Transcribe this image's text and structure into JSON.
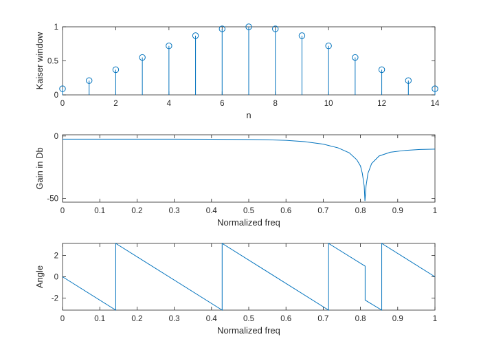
{
  "figure": {
    "background": "#ffffff",
    "series_color": "#0072BD",
    "axis_color": "#262626"
  },
  "chart_data": [
    {
      "type": "stem",
      "xlabel": "n",
      "ylabel": "Kaiser window",
      "xlim": [
        0,
        14
      ],
      "ylim": [
        0,
        1
      ],
      "xticks": [
        "0",
        "2",
        "4",
        "6",
        "8",
        "10",
        "12",
        "14"
      ],
      "yticks": [
        "0",
        "0.5",
        "1"
      ],
      "grid": false,
      "n": [
        0,
        1,
        2,
        3,
        4,
        5,
        6,
        7,
        8,
        9,
        10,
        11,
        12,
        13,
        14
      ],
      "values": [
        0.09,
        0.21,
        0.37,
        0.55,
        0.72,
        0.87,
        0.97,
        1.0,
        0.97,
        0.87,
        0.72,
        0.55,
        0.37,
        0.21,
        0.09
      ]
    },
    {
      "type": "line",
      "xlabel": "Normalized freq",
      "ylabel": "Gain in Db",
      "xlim": [
        0,
        1
      ],
      "ylim": [
        -53,
        1
      ],
      "xticks": [
        "0",
        "0.1",
        "0.2",
        "0.3",
        "0.4",
        "0.5",
        "0.6",
        "0.7",
        "0.8",
        "0.9",
        "1"
      ],
      "yticks": [
        "-50",
        "0"
      ],
      "grid": false,
      "x": [
        0,
        0.1,
        0.2,
        0.3,
        0.4,
        0.5,
        0.55,
        0.6,
        0.65,
        0.7,
        0.74,
        0.77,
        0.79,
        0.8,
        0.805,
        0.81,
        0.812,
        0.815,
        0.82,
        0.83,
        0.85,
        0.88,
        0.92,
        0.96,
        1.0
      ],
      "y": [
        -2.5,
        -2.5,
        -2.5,
        -2.5,
        -2.6,
        -2.8,
        -3.0,
        -3.5,
        -4.5,
        -6.5,
        -9.5,
        -13.5,
        -19,
        -24,
        -30,
        -40,
        -52,
        -40,
        -30,
        -22,
        -16,
        -13,
        -11.5,
        -10.8,
        -10.5
      ]
    },
    {
      "type": "line",
      "xlabel": "Normalized freq",
      "ylabel": "Angle",
      "xlim": [
        0,
        1
      ],
      "ylim": [
        -3.1416,
        3.1416
      ],
      "xticks": [
        "0",
        "0.1",
        "0.2",
        "0.3",
        "0.4",
        "0.5",
        "0.6",
        "0.7",
        "0.8",
        "0.9",
        "1"
      ],
      "yticks": [
        "-2",
        "0",
        "2"
      ],
      "grid": false,
      "x": [
        0,
        0.1429,
        0.1429,
        0.4286,
        0.4286,
        0.7143,
        0.7143,
        0.8125,
        0.8125,
        0.8571,
        0.8571,
        1.0
      ],
      "y": [
        0,
        -3.1416,
        3.1416,
        -3.1416,
        3.1416,
        -3.1416,
        3.1416,
        1.0,
        -2.2,
        -3.1416,
        3.1416,
        0
      ]
    }
  ]
}
